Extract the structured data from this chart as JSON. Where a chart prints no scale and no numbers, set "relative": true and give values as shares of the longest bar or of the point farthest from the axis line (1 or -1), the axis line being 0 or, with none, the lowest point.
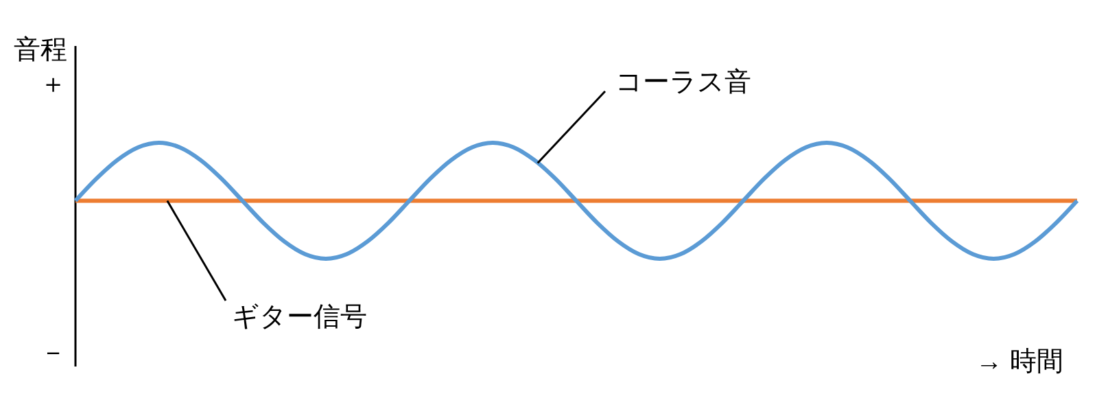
{
  "chart_data": {
    "type": "line",
    "relative": true,
    "ylabel": "音程",
    "xlabel": "→ 時間",
    "annotations": [
      "＋",
      "－"
    ],
    "categories": [
      null,
      null,
      null,
      null,
      null,
      null,
      null,
      null,
      null,
      null,
      null,
      null,
      null,
      null,
      null,
      null,
      null,
      null,
      null,
      null,
      null,
      null,
      null,
      null,
      null,
      null,
      null,
      null,
      null,
      null,
      null,
      null,
      null,
      null,
      null,
      null,
      null,
      null,
      null,
      null,
      null,
      null,
      null,
      null,
      null,
      null,
      null,
      null,
      null
    ],
    "series": [
      {
        "name": "ギター信号",
        "color": "#ed7d31",
        "values": [
          0.5,
          0.5,
          0.5,
          0.5,
          0.5,
          0.5,
          0.5,
          0.5,
          0.5,
          0.5,
          0.5,
          0.5,
          0.5,
          0.5,
          0.5,
          0.5,
          0.5,
          0.5,
          0.5,
          0.5,
          0.5,
          0.5,
          0.5,
          0.5,
          0.5,
          0.5,
          0.5,
          0.5,
          0.5,
          0.5,
          0.5,
          0.5,
          0.5,
          0.5,
          0.5,
          0.5,
          0.5,
          0.5,
          0.5,
          0.5,
          0.5,
          0.5,
          0.5,
          0.5,
          0.5,
          0.5,
          0.5,
          0.5,
          0.5
        ]
      },
      {
        "name": "コーラス音",
        "color": "#5b9bd5",
        "values": [
          0.5,
          0.69,
          0.85,
          0.96,
          1,
          0.96,
          0.85,
          0.69,
          0.5,
          0.31,
          0.15,
          0.04,
          0,
          0.04,
          0.15,
          0.31,
          0.5,
          0.69,
          0.85,
          0.96,
          1,
          0.96,
          0.85,
          0.69,
          0.5,
          0.31,
          0.15,
          0.04,
          0,
          0.04,
          0.15,
          0.31,
          0.5,
          0.69,
          0.85,
          0.96,
          1,
          0.96,
          0.85,
          0.69,
          0.5,
          0.31,
          0.15,
          0.04,
          0,
          0.04,
          0.15,
          0.31,
          0.5
        ]
      }
    ]
  }
}
